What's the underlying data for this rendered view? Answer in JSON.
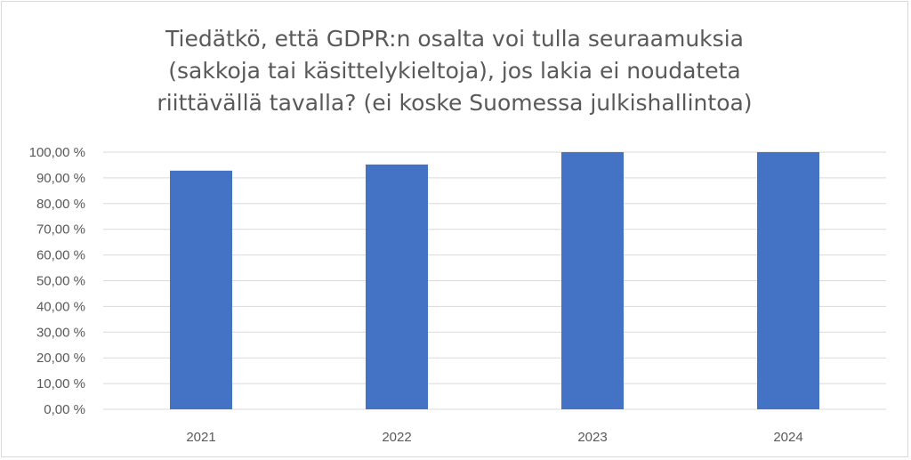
{
  "chart_data": {
    "type": "bar",
    "title_lines": [
      "Tiedätkö, että GDPR:n osalta voi tulla seuraamuksia",
      "(sakkoja tai käsittelykieltoja), jos lakia ei noudateta",
      "riittävällä tavalla? (ei koske Suomessa julkishallintoa)"
    ],
    "categories": [
      "2021",
      "2022",
      "2023",
      "2024"
    ],
    "values": [
      92.8,
      95.2,
      100.0,
      100.0
    ],
    "ylim": [
      0,
      100
    ],
    "ytick_step": 10,
    "ytick_labels": [
      "0,00 %",
      "10,00 %",
      "20,00 %",
      "30,00 %",
      "40,00 %",
      "50,00 %",
      "60,00 %",
      "70,00 %",
      "80,00 %",
      "90,00 %",
      "100,00 %"
    ],
    "grid": true,
    "legend": "none",
    "bar_color": "#4472c4",
    "grid_color": "#d9d9d9"
  }
}
